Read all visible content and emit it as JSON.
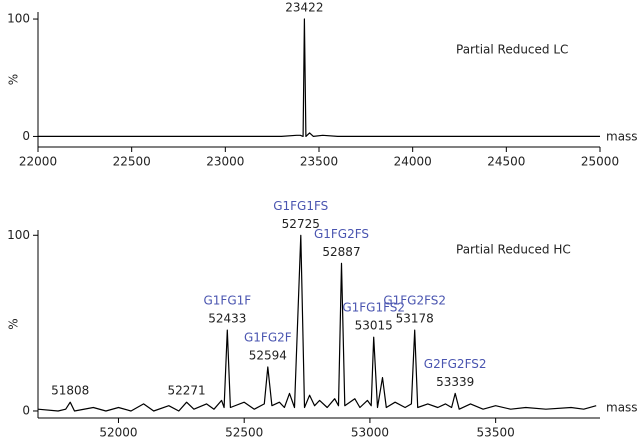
{
  "chart_data": [
    {
      "type": "line",
      "title": "Partial Reduced LC",
      "xlabel": "mass",
      "ylabel": "%",
      "color": "#000000",
      "label_color": "#4a55b0",
      "xlim": [
        22000,
        25000
      ],
      "xticks": [
        22000,
        22500,
        23000,
        23500,
        24000,
        24500,
        25000
      ],
      "ylim": [
        -9,
        106
      ],
      "yticks": [
        0,
        100
      ],
      "x": [
        22000,
        22600,
        23000,
        23300,
        23380,
        23400,
        23415,
        23422,
        23430,
        23450,
        23470,
        23520,
        23600,
        24000,
        24500,
        25000
      ],
      "values": [
        0,
        0,
        0,
        0,
        1,
        1,
        0,
        100,
        0,
        3,
        0,
        1,
        0,
        0,
        0,
        0
      ],
      "peaks": [
        {
          "mass": 23422
        }
      ]
    },
    {
      "type": "line",
      "title": "Partial Reduced HC",
      "xlabel": "mass",
      "ylabel": "%",
      "color": "#000000",
      "label_color": "#4a55b0",
      "xlim": [
        51680,
        53915
      ],
      "xticks": [
        52000,
        52500,
        53000,
        53500
      ],
      "ylim": [
        -4,
        103
      ],
      "yticks": [
        0,
        100
      ],
      "x": [
        51680,
        51760,
        51790,
        51808,
        51825,
        51900,
        51950,
        52000,
        52050,
        52100,
        52140,
        52200,
        52240,
        52271,
        52300,
        52350,
        52380,
        52410,
        52420,
        52433,
        52445,
        52500,
        52540,
        52580,
        52594,
        52610,
        52640,
        52660,
        52680,
        52700,
        52725,
        52740,
        52760,
        52780,
        52800,
        52830,
        52860,
        52875,
        52887,
        52900,
        52940,
        52960,
        52990,
        53005,
        53015,
        53030,
        53050,
        53065,
        53100,
        53140,
        53165,
        53178,
        53190,
        53230,
        53270,
        53300,
        53325,
        53339,
        53355,
        53400,
        53450,
        53500,
        53560,
        53620,
        53700,
        53800,
        53850,
        53900
      ],
      "values": [
        1,
        0,
        1,
        5,
        0,
        2,
        0,
        2,
        0,
        4,
        0,
        3,
        0,
        5,
        1,
        4,
        1,
        6,
        2,
        46,
        2,
        5,
        1,
        4,
        25,
        3,
        5,
        2,
        10,
        2,
        100,
        2,
        9,
        3,
        6,
        2,
        7,
        3,
        84,
        3,
        7,
        2,
        6,
        3,
        42,
        2,
        19,
        2,
        5,
        2,
        4,
        46,
        2,
        4,
        2,
        4,
        2,
        10,
        1,
        4,
        1,
        3,
        1,
        2,
        1,
        2,
        1,
        3
      ],
      "peaks": [
        {
          "mass": 51808
        },
        {
          "mass": 52271
        },
        {
          "mass": 52433,
          "name": "G1FG1F"
        },
        {
          "mass": 52594,
          "name": "G1FG2F"
        },
        {
          "mass": 52725,
          "name": "G1FG1FS"
        },
        {
          "mass": 52887,
          "name": "G1FG2FS"
        },
        {
          "mass": 53015,
          "name": "G1FG1FS2"
        },
        {
          "mass": 53178,
          "name": "G1FG2FS2"
        },
        {
          "mass": 53339,
          "name": "G2FG2FS2"
        }
      ]
    }
  ]
}
